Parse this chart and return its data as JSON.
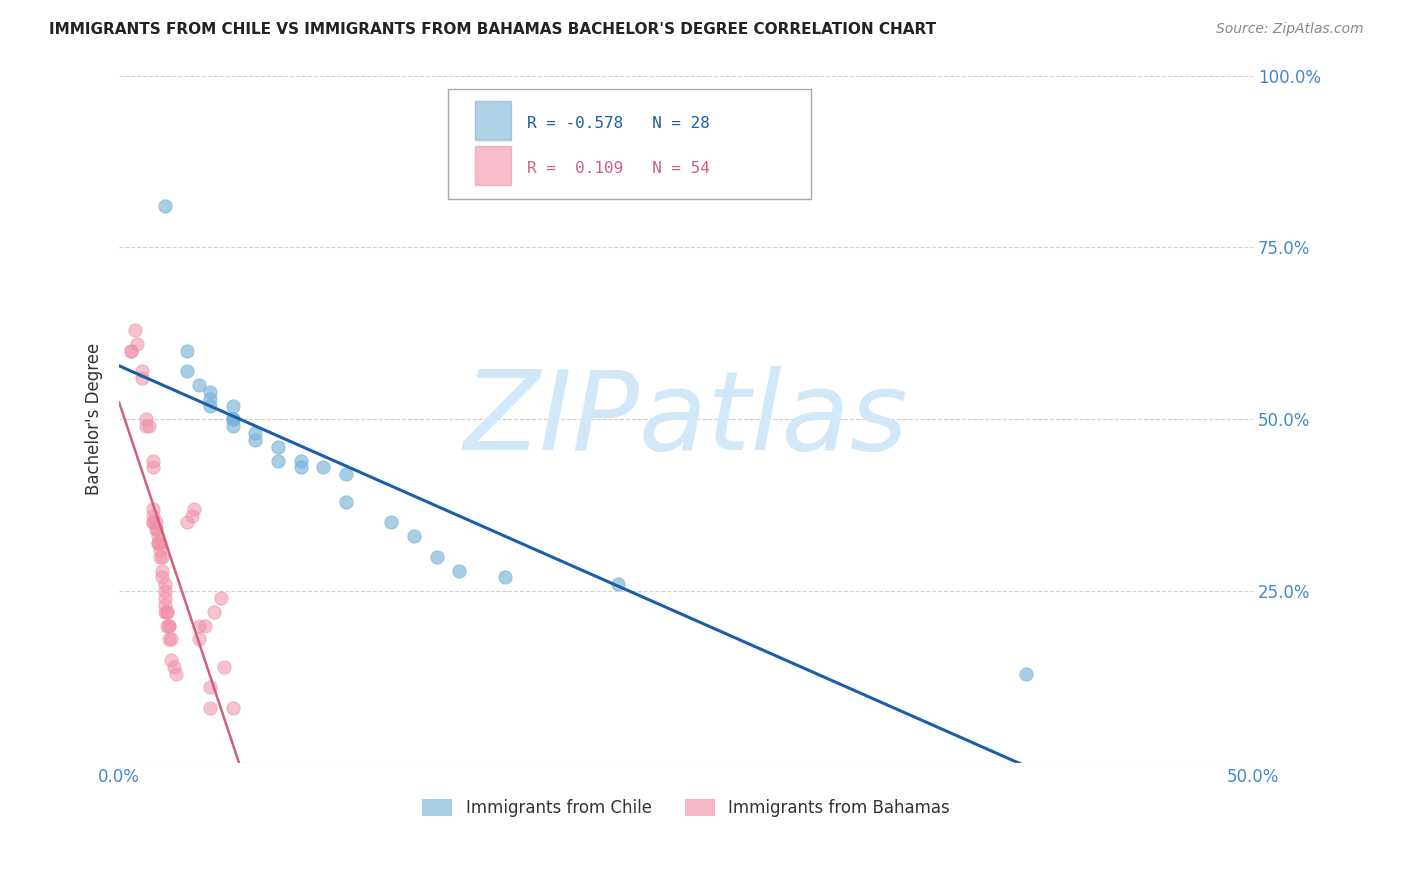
{
  "title": "IMMIGRANTS FROM CHILE VS IMMIGRANTS FROM BAHAMAS BACHELOR'S DEGREE CORRELATION CHART",
  "source": "Source: ZipAtlas.com",
  "ylabel": "Bachelor's Degree",
  "chile_color": "#7ab4d8",
  "bahamas_color": "#f090a8",
  "chile_line_color": "#1a5fa8",
  "bahamas_line_color": "#d06080",
  "watermark_text": "ZIPatlas",
  "watermark_color": "#d0e8f8",
  "chile_legend_label": "Immigrants from Chile",
  "bahamas_legend_label": "Immigrants from Bahamas",
  "chile_R": -0.578,
  "chile_N": 28,
  "bahamas_R": 0.109,
  "bahamas_N": 54,
  "xlim": [
    0.0,
    0.5
  ],
  "ylim": [
    0.0,
    1.0
  ],
  "chile_points": [
    [
      0.02,
      0.81
    ],
    [
      0.03,
      0.6
    ],
    [
      0.03,
      0.57
    ],
    [
      0.035,
      0.55
    ],
    [
      0.04,
      0.54
    ],
    [
      0.04,
      0.53
    ],
    [
      0.04,
      0.52
    ],
    [
      0.05,
      0.52
    ],
    [
      0.05,
      0.5
    ],
    [
      0.05,
      0.5
    ],
    [
      0.05,
      0.5
    ],
    [
      0.05,
      0.49
    ],
    [
      0.06,
      0.48
    ],
    [
      0.06,
      0.47
    ],
    [
      0.07,
      0.46
    ],
    [
      0.07,
      0.44
    ],
    [
      0.08,
      0.44
    ],
    [
      0.08,
      0.43
    ],
    [
      0.09,
      0.43
    ],
    [
      0.1,
      0.42
    ],
    [
      0.1,
      0.38
    ],
    [
      0.12,
      0.35
    ],
    [
      0.13,
      0.33
    ],
    [
      0.14,
      0.3
    ],
    [
      0.15,
      0.28
    ],
    [
      0.17,
      0.27
    ],
    [
      0.22,
      0.26
    ],
    [
      0.4,
      0.13
    ]
  ],
  "bahamas_points": [
    [
      0.005,
      0.6
    ],
    [
      0.005,
      0.6
    ],
    [
      0.007,
      0.63
    ],
    [
      0.008,
      0.61
    ],
    [
      0.01,
      0.57
    ],
    [
      0.01,
      0.56
    ],
    [
      0.012,
      0.5
    ],
    [
      0.012,
      0.49
    ],
    [
      0.013,
      0.49
    ],
    [
      0.015,
      0.44
    ],
    [
      0.015,
      0.43
    ],
    [
      0.015,
      0.37
    ],
    [
      0.015,
      0.36
    ],
    [
      0.015,
      0.35
    ],
    [
      0.015,
      0.35
    ],
    [
      0.016,
      0.35
    ],
    [
      0.016,
      0.34
    ],
    [
      0.016,
      0.34
    ],
    [
      0.017,
      0.33
    ],
    [
      0.017,
      0.32
    ],
    [
      0.017,
      0.32
    ],
    [
      0.018,
      0.32
    ],
    [
      0.018,
      0.31
    ],
    [
      0.018,
      0.3
    ],
    [
      0.019,
      0.3
    ],
    [
      0.019,
      0.28
    ],
    [
      0.019,
      0.27
    ],
    [
      0.02,
      0.26
    ],
    [
      0.02,
      0.25
    ],
    [
      0.02,
      0.24
    ],
    [
      0.02,
      0.23
    ],
    [
      0.02,
      0.22
    ],
    [
      0.021,
      0.22
    ],
    [
      0.021,
      0.22
    ],
    [
      0.021,
      0.2
    ],
    [
      0.022,
      0.2
    ],
    [
      0.022,
      0.2
    ],
    [
      0.022,
      0.18
    ],
    [
      0.023,
      0.18
    ],
    [
      0.023,
      0.15
    ],
    [
      0.024,
      0.14
    ],
    [
      0.025,
      0.13
    ],
    [
      0.03,
      0.35
    ],
    [
      0.032,
      0.36
    ],
    [
      0.033,
      0.37
    ],
    [
      0.035,
      0.2
    ],
    [
      0.035,
      0.18
    ],
    [
      0.038,
      0.2
    ],
    [
      0.04,
      0.11
    ],
    [
      0.04,
      0.08
    ],
    [
      0.042,
      0.22
    ],
    [
      0.045,
      0.24
    ],
    [
      0.046,
      0.14
    ],
    [
      0.05,
      0.08
    ]
  ]
}
